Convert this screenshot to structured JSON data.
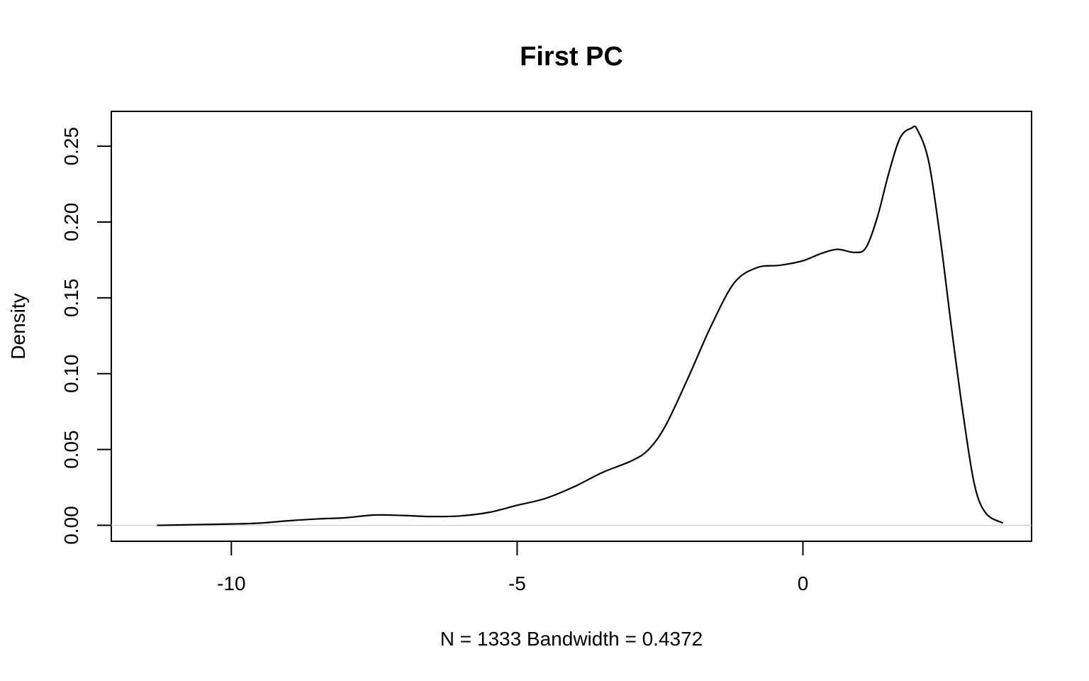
{
  "chart_data": {
    "type": "line",
    "title": "First PC",
    "xlabel": "N = 1333   Bandwidth = 0.4372",
    "ylabel": "Density",
    "xlim": [
      -12.1,
      4.0
    ],
    "ylim": [
      -0.0105,
      0.273
    ],
    "x_ticks": [
      -10,
      -5,
      0
    ],
    "x_tick_labels": [
      "-10",
      "-5",
      "0"
    ],
    "y_ticks": [
      0,
      0.05,
      0.1,
      0.15,
      0.2,
      0.25
    ],
    "y_tick_labels": [
      "0.00",
      "0.05",
      "0.10",
      "0.15",
      "0.20",
      "0.25"
    ],
    "zero_line": true,
    "grid": false,
    "series": [
      {
        "x": [
          -11.3,
          -10.7,
          -10.0,
          -9.5,
          -9.0,
          -8.5,
          -8.0,
          -7.5,
          -7.0,
          -6.5,
          -6.0,
          -5.5,
          -5.0,
          -4.5,
          -4.0,
          -3.5,
          -3.0,
          -2.7,
          -2.4,
          -2.0,
          -1.6,
          -1.2,
          -0.8,
          -0.4,
          0.0,
          0.3,
          0.6,
          0.9,
          1.1,
          1.3,
          1.5,
          1.7,
          1.9,
          2.0,
          2.2,
          2.4,
          2.6,
          2.8,
          3.0,
          3.2,
          3.5
        ],
        "y": [
          0.0,
          0.0004,
          0.0009,
          0.0015,
          0.003,
          0.0042,
          0.005,
          0.0068,
          0.0065,
          0.0058,
          0.0062,
          0.0085,
          0.0132,
          0.0178,
          0.0255,
          0.035,
          0.0425,
          0.05,
          0.066,
          0.098,
          0.132,
          0.16,
          0.17,
          0.1715,
          0.1745,
          0.179,
          0.182,
          0.18,
          0.183,
          0.203,
          0.232,
          0.2555,
          0.262,
          0.261,
          0.24,
          0.19,
          0.13,
          0.074,
          0.027,
          0.008,
          0.0015
        ]
      }
    ]
  }
}
